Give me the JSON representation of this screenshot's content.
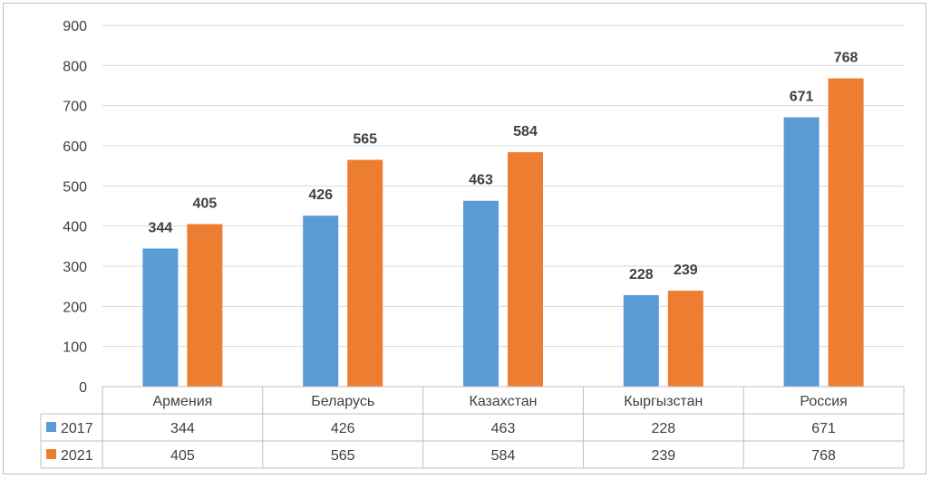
{
  "chart_data": {
    "type": "bar",
    "categories": [
      "Армения",
      "Беларусь",
      "Казахстан",
      "Кыргызстан",
      "Россия"
    ],
    "series": [
      {
        "name": "2017",
        "values": [
          344,
          426,
          463,
          228,
          671
        ],
        "color": "#5b9bd5"
      },
      {
        "name": "2021",
        "values": [
          405,
          565,
          584,
          239,
          768
        ],
        "color": "#ed7d31"
      }
    ],
    "ylim": [
      0,
      900
    ],
    "yticks": [
      0,
      100,
      200,
      300,
      400,
      500,
      600,
      700,
      800,
      900
    ],
    "grid": true,
    "legend_placement": "data-table",
    "data_table": true
  }
}
